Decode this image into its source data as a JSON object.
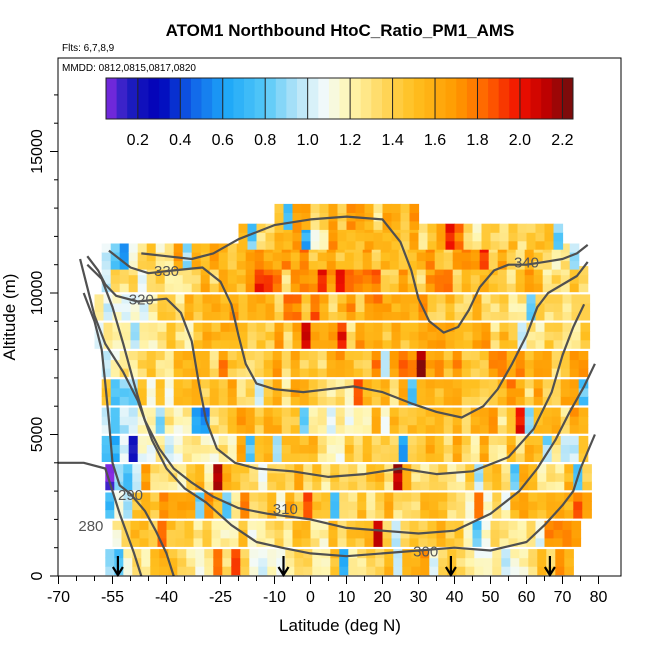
{
  "chart_data": {
    "type": "heatmap",
    "title": "ATOM1 Northbound HtoC_Ratio_PM1_AMS",
    "info_lines": [
      "Flts: 6,7,8,9",
      "MMDD: 0812,0815,0817,0820"
    ],
    "xlabel": "Latitude (deg N)",
    "ylabel": "Altitude (m)",
    "xlim": [
      -70,
      80
    ],
    "ylim": [
      0,
      17500
    ],
    "x_ticks": [
      -70,
      -55,
      -40,
      -25,
      -10,
      0,
      10,
      20,
      30,
      40,
      50,
      60,
      70,
      80
    ],
    "y_ticks": [
      0,
      5000,
      10000,
      15000
    ],
    "colorbar": {
      "min": 0.05,
      "max": 2.25,
      "ticks": [
        0.2,
        0.4,
        0.6,
        0.8,
        1.0,
        1.2,
        1.4,
        1.6,
        1.8,
        2.0,
        2.2
      ],
      "tick_labels": [
        "0.2",
        "0.4",
        "0.6",
        "0.8",
        "1.0",
        "1.2",
        "1.4",
        "1.6",
        "1.8",
        "2.0",
        "2.2"
      ],
      "stops": [
        {
          "v": 0.05,
          "c": "#8A2BE2"
        },
        {
          "v": 0.15,
          "c": "#2020C0"
        },
        {
          "v": 0.3,
          "c": "#0000B8"
        },
        {
          "v": 0.45,
          "c": "#1060E8"
        },
        {
          "v": 0.62,
          "c": "#1EA8F8"
        },
        {
          "v": 0.8,
          "c": "#55C8F8"
        },
        {
          "v": 0.95,
          "c": "#B4E4F8"
        },
        {
          "v": 1.08,
          "c": "#F2FAFA"
        },
        {
          "v": 1.2,
          "c": "#FFF6B0"
        },
        {
          "v": 1.35,
          "c": "#FFD860"
        },
        {
          "v": 1.5,
          "c": "#FFC020"
        },
        {
          "v": 1.7,
          "c": "#FF9A00"
        },
        {
          "v": 1.85,
          "c": "#FF6000"
        },
        {
          "v": 2.0,
          "c": "#F01000"
        },
        {
          "v": 2.12,
          "c": "#C00000"
        },
        {
          "v": 2.25,
          "c": "#6E0E0E"
        }
      ]
    },
    "heatmap_rows": [
      {
        "alt": 500,
        "x0": -57,
        "x1": 73,
        "base": [
          0.65,
          0.75,
          1.4,
          1.3,
          1.2,
          1.25,
          1.35,
          1.45,
          1.5,
          1.3,
          1.1,
          1.5,
          1.6
        ]
      },
      {
        "alt": 1500,
        "x0": -55,
        "x1": 75,
        "base": [
          0.7,
          0.9,
          1.6,
          1.45,
          1.3,
          1.3,
          1.4,
          1.45,
          1.5,
          1.25,
          1.3,
          1.6,
          1.75
        ]
      },
      {
        "alt": 2500,
        "x0": -57,
        "x1": 76,
        "base": [
          0.7,
          0.85,
          1.5,
          1.55,
          1.35,
          1.35,
          1.4,
          1.5,
          1.45,
          1.3,
          1.35,
          1.55,
          1.7
        ]
      },
      {
        "alt": 3500,
        "x0": -57,
        "x1": 76,
        "base": [
          0.7,
          0.8,
          1.1,
          1.45,
          1.35,
          1.4,
          1.35,
          1.45,
          1.5,
          1.35,
          1.4,
          1.5,
          1.45
        ]
      },
      {
        "alt": 4500,
        "x0": -58,
        "x1": 77,
        "base": [
          0.75,
          0.8,
          1.0,
          1.3,
          1.4,
          1.4,
          1.3,
          1.35,
          1.5,
          1.4,
          1.45,
          1.45,
          1.4
        ]
      },
      {
        "alt": 5500,
        "x0": -58,
        "x1": 77,
        "base": [
          0.8,
          0.8,
          1.05,
          1.3,
          1.45,
          1.35,
          1.3,
          1.3,
          1.5,
          1.45,
          1.5,
          1.45,
          1.4
        ]
      },
      {
        "alt": 6500,
        "x0": -58,
        "x1": 77,
        "base": [
          0.85,
          0.9,
          1.2,
          1.45,
          1.5,
          1.45,
          1.4,
          1.45,
          1.55,
          1.5,
          1.55,
          1.5,
          1.45
        ]
      },
      {
        "alt": 7500,
        "x0": -58,
        "x1": 77,
        "base": [
          0.9,
          1.0,
          1.3,
          1.5,
          1.55,
          1.5,
          1.5,
          1.55,
          1.6,
          1.5,
          1.55,
          1.5,
          1.4
        ]
      },
      {
        "alt": 8500,
        "x0": -60,
        "x1": 77,
        "base": [
          0.95,
          1.05,
          1.2,
          1.4,
          1.5,
          1.5,
          1.45,
          1.5,
          1.6,
          1.55,
          1.5,
          1.4,
          1.35
        ]
      },
      {
        "alt": 9500,
        "x0": -60,
        "x1": 77,
        "base": [
          1.1,
          1.1,
          1.25,
          1.45,
          1.55,
          1.6,
          1.55,
          1.6,
          1.5,
          1.5,
          1.4,
          1.4,
          1.3
        ]
      },
      {
        "alt": 10500,
        "x0": -58,
        "x1": 77,
        "base": [
          0.9,
          1.2,
          1.3,
          1.5,
          1.7,
          1.85,
          1.8,
          1.6,
          1.5,
          1.55,
          1.5,
          1.4,
          1.2
        ]
      },
      {
        "alt": 11300,
        "x0": -58,
        "x1": 73,
        "base": [
          0.5,
          0.9,
          1.35,
          1.5,
          1.65,
          1.7,
          1.6,
          1.5,
          1.55,
          1.6,
          1.5,
          1.3,
          0.9
        ]
      },
      {
        "alt": 12000,
        "x0": -20,
        "x1": 68,
        "base": [
          1.4,
          1.4,
          1.5,
          1.55,
          1.5,
          1.45,
          1.5,
          1.45,
          1.5,
          1.4,
          1.4,
          1.3,
          1.0
        ]
      },
      {
        "alt": 12700,
        "x0": -10,
        "x1": 30,
        "base": [
          1.5,
          1.55,
          1.6,
          1.6,
          1.55,
          1.5,
          1.55,
          1.5,
          1.5,
          1.5,
          1.5,
          1.5,
          1.5
        ]
      }
    ],
    "heatmap_row_height": 900,
    "contours": [
      {
        "label": "280",
        "label_at": [
          -61,
          1700
        ],
        "points": [
          [
            -70,
            4000
          ],
          [
            -63,
            4000
          ],
          [
            -57,
            3800
          ],
          [
            -55,
            3000
          ],
          [
            -53,
            2200
          ],
          [
            -51,
            1500
          ],
          [
            -49,
            800
          ],
          [
            -47,
            0
          ]
        ]
      },
      {
        "label": "290",
        "label_at": [
          -50,
          2800
        ],
        "points": [
          [
            -63,
            10000
          ],
          [
            -60,
            9000
          ],
          [
            -58,
            8000
          ],
          [
            -57,
            6800
          ],
          [
            -56,
            5500
          ],
          [
            -55,
            4000
          ],
          [
            -53,
            3200
          ],
          [
            -50,
            2900
          ],
          [
            -46,
            2300
          ],
          [
            -43,
            1600
          ],
          [
            -40,
            800
          ],
          [
            -38,
            0
          ]
        ]
      },
      {
        "label": "300",
        "label_at": [
          32,
          800
        ],
        "points": [
          [
            -64,
            11200
          ],
          [
            -62,
            10200
          ],
          [
            -60,
            9200
          ],
          [
            -57,
            8200
          ],
          [
            -52,
            7200
          ],
          [
            -48,
            6200
          ],
          [
            -44,
            4800
          ],
          [
            -40,
            3800
          ],
          [
            -35,
            3100
          ],
          [
            -29,
            2600
          ],
          [
            -22,
            1800
          ],
          [
            -15,
            1200
          ],
          [
            -8,
            1000
          ],
          [
            0,
            800
          ],
          [
            10,
            700
          ],
          [
            20,
            800
          ],
          [
            30,
            900
          ],
          [
            40,
            1000
          ],
          [
            50,
            900
          ],
          [
            60,
            1200
          ],
          [
            65,
            1800
          ],
          [
            70,
            2500
          ],
          [
            73,
            3000
          ],
          [
            75,
            3800
          ],
          [
            77,
            4400
          ],
          [
            79,
            5000
          ]
        ]
      },
      {
        "label": "310",
        "label_at": [
          -7,
          2300
        ],
        "points": [
          [
            -62,
            11000
          ],
          [
            -58,
            10500
          ],
          [
            -55,
            9500
          ],
          [
            -52,
            8200
          ],
          [
            -49,
            6800
          ],
          [
            -46,
            5500
          ],
          [
            -42,
            4500
          ],
          [
            -38,
            3800
          ],
          [
            -33,
            3300
          ],
          [
            -27,
            2800
          ],
          [
            -20,
            2400
          ],
          [
            -12,
            2200
          ],
          [
            0,
            2000
          ],
          [
            10,
            1700
          ],
          [
            20,
            1600
          ],
          [
            30,
            1500
          ],
          [
            40,
            1600
          ],
          [
            50,
            2200
          ],
          [
            58,
            3000
          ],
          [
            63,
            3800
          ],
          [
            68,
            4800
          ],
          [
            72,
            5800
          ],
          [
            76,
            6700
          ],
          [
            79,
            7500
          ]
        ]
      },
      {
        "label": "320",
        "label_at": [
          -47,
          9700
        ],
        "points": [
          [
            -62,
            11300
          ],
          [
            -59,
            10800
          ],
          [
            -57,
            10300
          ],
          [
            -54,
            9900
          ],
          [
            -48,
            9700
          ],
          [
            -40,
            9800
          ],
          [
            -36,
            9300
          ],
          [
            -33,
            8300
          ],
          [
            -31,
            6800
          ],
          [
            -29,
            5500
          ],
          [
            -26,
            4500
          ],
          [
            -21,
            4000
          ],
          [
            -15,
            3800
          ],
          [
            -5,
            3700
          ],
          [
            5,
            3500
          ],
          [
            15,
            3600
          ],
          [
            25,
            3800
          ],
          [
            35,
            3600
          ],
          [
            45,
            3700
          ],
          [
            55,
            4200
          ],
          [
            62,
            5200
          ],
          [
            67,
            6500
          ],
          [
            70,
            7800
          ],
          [
            73,
            8800
          ],
          [
            76,
            9600
          ]
        ]
      },
      {
        "label": "330",
        "label_at": [
          -40,
          10700
        ],
        "points": [
          [
            -56,
            11500
          ],
          [
            -50,
            10900
          ],
          [
            -45,
            10700
          ],
          [
            -38,
            10800
          ],
          [
            -30,
            10900
          ],
          [
            -25,
            10400
          ],
          [
            -22,
            9600
          ],
          [
            -20,
            8500
          ],
          [
            -18,
            7500
          ],
          [
            -15,
            6800
          ],
          [
            -10,
            6600
          ],
          [
            -2,
            6500
          ],
          [
            5,
            6600
          ],
          [
            12,
            6700
          ],
          [
            20,
            6500
          ],
          [
            28,
            6100
          ],
          [
            35,
            5800
          ],
          [
            42,
            5600
          ],
          [
            48,
            6000
          ],
          [
            52,
            6600
          ],
          [
            56,
            7500
          ],
          [
            60,
            8500
          ],
          [
            63,
            9500
          ],
          [
            66,
            10000
          ],
          [
            70,
            10300
          ],
          [
            74,
            10600
          ],
          [
            77,
            11100
          ]
        ]
      },
      {
        "label": "340",
        "label_at": [
          60,
          11000
        ],
        "points": [
          [
            -47,
            11400
          ],
          [
            -40,
            11300
          ],
          [
            -33,
            11200
          ],
          [
            -27,
            11400
          ],
          [
            -20,
            11900
          ],
          [
            -10,
            12400
          ],
          [
            0,
            12600
          ],
          [
            10,
            12700
          ],
          [
            20,
            12600
          ],
          [
            25,
            11800
          ],
          [
            28,
            10800
          ],
          [
            30,
            9800
          ],
          [
            33,
            9000
          ],
          [
            37,
            8600
          ],
          [
            41,
            8800
          ],
          [
            44,
            9400
          ],
          [
            47,
            10200
          ],
          [
            51,
            10800
          ],
          [
            55,
            11000
          ],
          [
            60,
            11000
          ],
          [
            65,
            11100
          ],
          [
            70,
            11200
          ],
          [
            74,
            11400
          ],
          [
            77,
            11700
          ]
        ]
      }
    ],
    "arrows_x": [
      -53.5,
      -7.5,
      39,
      66.5
    ]
  }
}
